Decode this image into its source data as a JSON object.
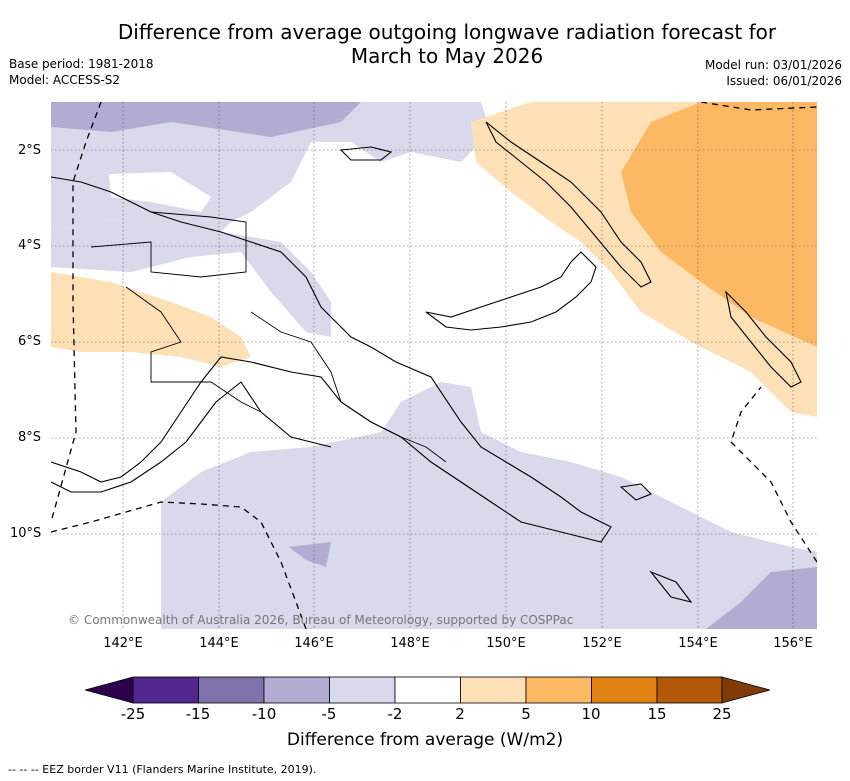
{
  "title": {
    "line1": "Difference from average outgoing longwave radiation forecast for",
    "line2": "March to May 2026"
  },
  "meta": {
    "base_period": "Base period: 1981-2018",
    "model": "Model: ACCESS-S2",
    "model_run": "Model run: 03/01/2026",
    "issued": "Issued: 06/01/2026"
  },
  "map": {
    "credit": "© Commonwealth of Australia 2026, Bureau of Meteorology, supported by COSPPac",
    "lat_labels": [
      "2°S",
      "4°S",
      "6°S",
      "8°S",
      "10°S"
    ],
    "lon_labels": [
      "142°E",
      "144°E",
      "146°E",
      "148°E",
      "150°E",
      "152°E",
      "154°E",
      "156°E"
    ],
    "colors": {
      "ocean": "#ffffff",
      "neg_2_5": "#d8d9ea",
      "neg_5_10": "#b2abd2",
      "pos_2_5": "#fee0b6",
      "pos_5_10": "#fdb863",
      "coast": "#000000",
      "grid": "#555555"
    }
  },
  "colorbar": {
    "ticks": [
      "-25",
      "-15",
      "-10",
      "-5",
      "-2",
      "2",
      "5",
      "10",
      "15",
      "25"
    ],
    "colors": [
      "#54278f",
      "#8073ac",
      "#b2abd2",
      "#d8daeb",
      "#ffffff",
      "#fee0b6",
      "#fdb863",
      "#e08214",
      "#b35806"
    ],
    "under_color": "#2d004b",
    "over_color": "#7f3b08",
    "label": "Difference from average (W/m2)"
  },
  "footnote": "-- -- -- EEZ border V11 (Flanders Marine Institute, 2019)."
}
